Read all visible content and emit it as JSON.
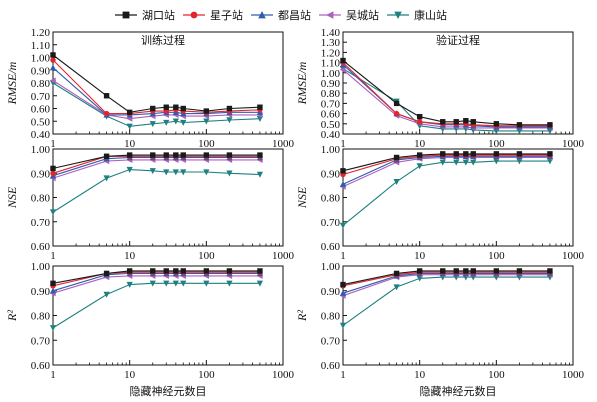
{
  "legend": [
    {
      "name": "湖口站",
      "color": "#1a1a1a",
      "marker": "square"
    },
    {
      "name": "星子站",
      "color": "#e0262b",
      "marker": "circle"
    },
    {
      "name": "都昌站",
      "color": "#2e5fae",
      "marker": "triangle"
    },
    {
      "name": "吴城站",
      "color": "#b05ec0",
      "marker": "left-triangle"
    },
    {
      "name": "康山站",
      "color": "#1f8080",
      "marker": "down-triangle"
    }
  ],
  "chart_data": [
    {
      "type": "line",
      "row": 0,
      "col": 0,
      "title": "训练过程",
      "ylabel": "RMSE/m",
      "xlabel": "",
      "xscale": "log",
      "xlim": [
        1,
        1000
      ],
      "ylim": [
        0.4,
        1.2
      ],
      "yticks": [
        "0.40",
        "0.50",
        "0.60",
        "0.70",
        "0.80",
        "0.90",
        "1.00",
        "1.10",
        "1.20"
      ],
      "x": [
        1,
        5,
        10,
        20,
        30,
        40,
        50,
        100,
        200,
        500
      ],
      "series": [
        {
          "name": "湖口站",
          "values": [
            1.02,
            0.7,
            0.57,
            0.6,
            0.61,
            0.61,
            0.6,
            0.58,
            0.6,
            0.61
          ]
        },
        {
          "name": "星子站",
          "values": [
            0.98,
            0.56,
            0.56,
            0.58,
            0.58,
            0.59,
            0.58,
            0.57,
            0.58,
            0.59
          ]
        },
        {
          "name": "都昌站",
          "values": [
            0.92,
            0.55,
            0.55,
            0.56,
            0.57,
            0.57,
            0.56,
            0.56,
            0.57,
            0.57
          ]
        },
        {
          "name": "吴城站",
          "values": [
            0.82,
            0.55,
            0.52,
            0.54,
            0.55,
            0.55,
            0.54,
            0.54,
            0.55,
            0.55
          ]
        },
        {
          "name": "康山站",
          "values": [
            0.8,
            0.54,
            0.46,
            0.48,
            0.49,
            0.5,
            0.49,
            0.5,
            0.51,
            0.52
          ]
        }
      ]
    },
    {
      "type": "line",
      "row": 0,
      "col": 1,
      "title": "验证过程",
      "ylabel": "RMSE/m",
      "xlabel": "",
      "xscale": "log",
      "xlim": [
        1,
        1000
      ],
      "ylim": [
        0.4,
        1.4
      ],
      "yticks": [
        "0.40",
        "0.50",
        "0.60",
        "0.70",
        "0.80",
        "0.90",
        "1.00",
        "1.10",
        "1.20",
        "1.30",
        "1.40"
      ],
      "x": [
        1,
        5,
        10,
        20,
        30,
        40,
        50,
        100,
        200,
        500
      ],
      "series": [
        {
          "name": "湖口站",
          "values": [
            1.12,
            0.7,
            0.57,
            0.52,
            0.52,
            0.53,
            0.52,
            0.5,
            0.49,
            0.49
          ]
        },
        {
          "name": "星子站",
          "values": [
            1.1,
            0.6,
            0.52,
            0.5,
            0.5,
            0.5,
            0.49,
            0.48,
            0.48,
            0.48
          ]
        },
        {
          "name": "都昌站",
          "values": [
            1.08,
            0.6,
            0.52,
            0.49,
            0.49,
            0.49,
            0.48,
            0.47,
            0.47,
            0.47
          ]
        },
        {
          "name": "吴城站",
          "values": [
            1.03,
            0.58,
            0.5,
            0.47,
            0.47,
            0.47,
            0.46,
            0.46,
            0.46,
            0.46
          ]
        },
        {
          "name": "康山站",
          "values": [
            1.04,
            0.72,
            0.48,
            0.45,
            0.45,
            0.45,
            0.44,
            0.43,
            0.43,
            0.43
          ]
        }
      ]
    },
    {
      "type": "line",
      "row": 1,
      "col": 0,
      "title": "",
      "ylabel": "NSE",
      "xlabel": "",
      "xscale": "log",
      "xlim": [
        1,
        1000
      ],
      "ylim": [
        0.6,
        1.0
      ],
      "yticks": [
        "0.60",
        "0.70",
        "0.80",
        "0.90",
        "1.00"
      ],
      "x": [
        1,
        5,
        10,
        20,
        30,
        40,
        50,
        100,
        200,
        500
      ],
      "series": [
        {
          "name": "湖口站",
          "values": [
            0.92,
            0.97,
            0.975,
            0.975,
            0.975,
            0.975,
            0.975,
            0.975,
            0.975,
            0.975
          ]
        },
        {
          "name": "星子站",
          "values": [
            0.9,
            0.97,
            0.97,
            0.97,
            0.97,
            0.97,
            0.97,
            0.97,
            0.97,
            0.97
          ]
        },
        {
          "name": "都昌站",
          "values": [
            0.89,
            0.96,
            0.965,
            0.965,
            0.965,
            0.965,
            0.965,
            0.965,
            0.965,
            0.965
          ]
        },
        {
          "name": "吴城站",
          "values": [
            0.88,
            0.95,
            0.955,
            0.955,
            0.955,
            0.955,
            0.955,
            0.955,
            0.955,
            0.955
          ]
        },
        {
          "name": "康山站",
          "values": [
            0.74,
            0.88,
            0.915,
            0.91,
            0.905,
            0.905,
            0.905,
            0.905,
            0.9,
            0.895
          ]
        }
      ]
    },
    {
      "type": "line",
      "row": 1,
      "col": 1,
      "title": "",
      "ylabel": "NSE",
      "xlabel": "",
      "xscale": "log",
      "xlim": [
        1,
        1000
      ],
      "ylim": [
        0.6,
        1.0
      ],
      "yticks": [
        "0.60",
        "0.70",
        "0.80",
        "0.90",
        "1.00"
      ],
      "x": [
        1,
        5,
        10,
        20,
        30,
        40,
        50,
        100,
        200,
        500
      ],
      "series": [
        {
          "name": "湖口站",
          "values": [
            0.91,
            0.965,
            0.975,
            0.98,
            0.98,
            0.98,
            0.98,
            0.98,
            0.98,
            0.98
          ]
        },
        {
          "name": "星子站",
          "values": [
            0.895,
            0.96,
            0.97,
            0.975,
            0.975,
            0.975,
            0.975,
            0.975,
            0.975,
            0.975
          ]
        },
        {
          "name": "都昌站",
          "values": [
            0.855,
            0.955,
            0.965,
            0.97,
            0.97,
            0.97,
            0.97,
            0.97,
            0.97,
            0.97
          ]
        },
        {
          "name": "吴城站",
          "values": [
            0.845,
            0.945,
            0.96,
            0.965,
            0.965,
            0.965,
            0.965,
            0.965,
            0.965,
            0.965
          ]
        },
        {
          "name": "康山站",
          "values": [
            0.685,
            0.865,
            0.93,
            0.945,
            0.945,
            0.945,
            0.945,
            0.95,
            0.95,
            0.95
          ]
        }
      ]
    },
    {
      "type": "line",
      "row": 2,
      "col": 0,
      "title": "",
      "ylabel": "R²",
      "xlabel": "隐藏神经元数目",
      "xscale": "log",
      "xlim": [
        1,
        1000
      ],
      "ylim": [
        0.6,
        1.0
      ],
      "yticks": [
        "0.60",
        "0.70",
        "0.80",
        "0.90",
        "1.00"
      ],
      "x": [
        1,
        5,
        10,
        20,
        30,
        40,
        50,
        100,
        200,
        500
      ],
      "series": [
        {
          "name": "湖口站",
          "values": [
            0.93,
            0.97,
            0.98,
            0.98,
            0.98,
            0.98,
            0.98,
            0.98,
            0.98,
            0.98
          ]
        },
        {
          "name": "星子站",
          "values": [
            0.92,
            0.97,
            0.975,
            0.975,
            0.975,
            0.975,
            0.975,
            0.975,
            0.975,
            0.975
          ]
        },
        {
          "name": "都昌站",
          "values": [
            0.9,
            0.965,
            0.97,
            0.97,
            0.97,
            0.97,
            0.97,
            0.97,
            0.97,
            0.97
          ]
        },
        {
          "name": "吴城站",
          "values": [
            0.89,
            0.955,
            0.96,
            0.96,
            0.96,
            0.96,
            0.96,
            0.96,
            0.96,
            0.96
          ]
        },
        {
          "name": "康山站",
          "values": [
            0.75,
            0.885,
            0.925,
            0.93,
            0.93,
            0.93,
            0.93,
            0.93,
            0.93,
            0.93
          ]
        }
      ]
    },
    {
      "type": "line",
      "row": 2,
      "col": 1,
      "title": "",
      "ylabel": "R²",
      "xlabel": "隐藏神经元数目",
      "xscale": "log",
      "xlim": [
        1,
        1000
      ],
      "ylim": [
        0.6,
        1.0
      ],
      "yticks": [
        "0.60",
        "0.70",
        "0.80",
        "0.90",
        "1.00"
      ],
      "x": [
        1,
        5,
        10,
        20,
        30,
        40,
        50,
        100,
        200,
        500
      ],
      "series": [
        {
          "name": "湖口站",
          "values": [
            0.925,
            0.97,
            0.98,
            0.98,
            0.98,
            0.98,
            0.98,
            0.98,
            0.98,
            0.98
          ]
        },
        {
          "name": "星子站",
          "values": [
            0.92,
            0.965,
            0.975,
            0.975,
            0.975,
            0.975,
            0.975,
            0.975,
            0.975,
            0.975
          ]
        },
        {
          "name": "都昌站",
          "values": [
            0.89,
            0.96,
            0.97,
            0.97,
            0.97,
            0.97,
            0.97,
            0.97,
            0.97,
            0.97
          ]
        },
        {
          "name": "吴城站",
          "values": [
            0.88,
            0.955,
            0.965,
            0.965,
            0.965,
            0.965,
            0.965,
            0.965,
            0.965,
            0.965
          ]
        },
        {
          "name": "康山站",
          "values": [
            0.76,
            0.915,
            0.95,
            0.955,
            0.955,
            0.955,
            0.955,
            0.955,
            0.955,
            0.955
          ]
        }
      ]
    }
  ],
  "xticks": [
    "1",
    "10",
    "100",
    "1000"
  ]
}
